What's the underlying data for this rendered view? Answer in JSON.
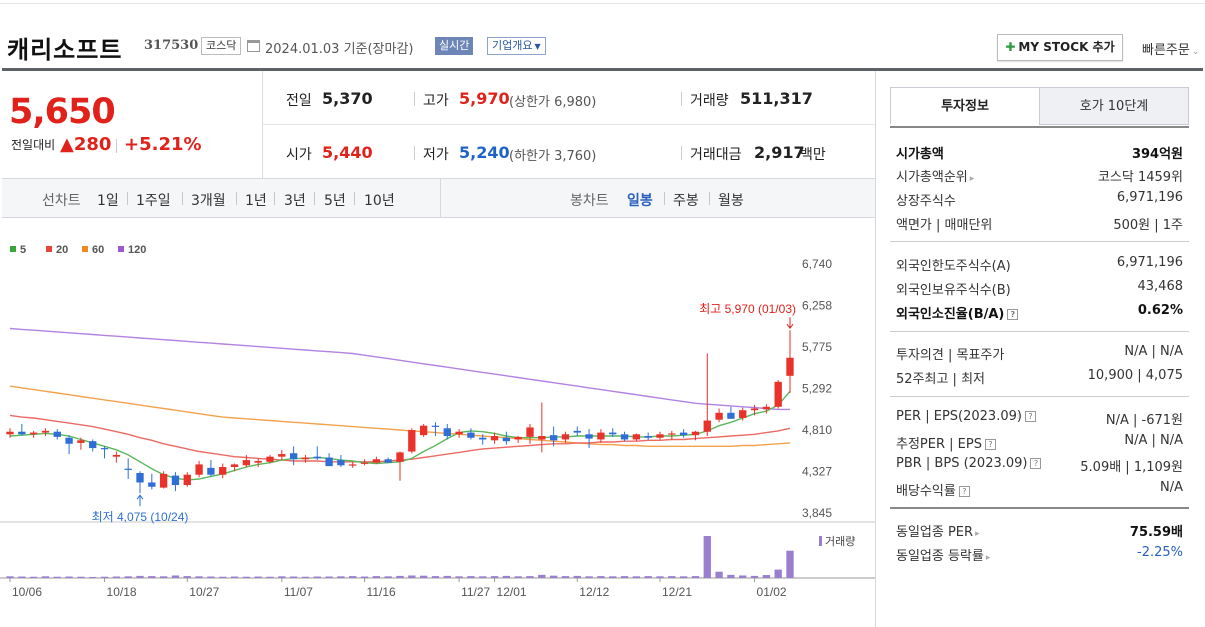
{
  "header": {
    "company_name": "캐리소프트",
    "code": "317530",
    "market_badge": "코스닥",
    "date_text": "2024.01.03 기준(장마감)",
    "realtime_label": "실시간",
    "company_info_label": "기업개요",
    "mystock_button": "MY STOCK 추가",
    "quick_order": "빠른주문"
  },
  "summary": {
    "price": "5,650",
    "change_label": "전일대비",
    "change_arrow": "▲",
    "change_value": "280",
    "change_pct": "+5.21%",
    "prev_close_label": "전일",
    "prev_close": "5,370",
    "high_label": "고가",
    "high": "5,970",
    "upper_limit": "(상한가 6,980)",
    "volume_label": "거래량",
    "volume": "511,317",
    "open_label": "시가",
    "open": "5,440",
    "low_label": "저가",
    "low": "5,240",
    "lower_limit": "(하한가 3,760)",
    "amount_label": "거래대금",
    "amount": "2,917",
    "amount_unit": "백만"
  },
  "period_tabs": {
    "line_chart_label": "선차트",
    "line_items": [
      "1일",
      "1주일",
      "3개월",
      "1년",
      "3년",
      "5년",
      "10년"
    ],
    "candle_chart_label": "봉차트",
    "candle_items": [
      "일봉",
      "주봉",
      "월봉"
    ],
    "active_candle": "일봉"
  },
  "right_panel": {
    "tab_active": "투자정보",
    "tab_other": "호가 10단계",
    "market_cap_label": "시가총액",
    "market_cap": "394억원",
    "cap_rank_label": "시가총액순위",
    "cap_rank": "코스닥 1459위",
    "shares_label": "상장주식수",
    "shares": "6,971,196",
    "par_label": "액면가 | 매매단위",
    "par_value": "500원 | 1주",
    "foreign_limit_label": "외국인한도주식수(A)",
    "foreign_limit": "6,971,196",
    "foreign_held_label": "외국인보유주식수(B)",
    "foreign_held": "43,468",
    "foreign_ratio_label": "외국인소진율(B/A)",
    "foreign_ratio": "0.62%",
    "opinion_label": "투자의견 | 목표주가",
    "opinion_value": "N/A | N/A",
    "week52_label": "52주최고 | 최저",
    "week52_value": "10,900 | 4,075",
    "per_label": "PER | EPS(2023.09)",
    "per_value": "N/A | -671원",
    "est_per_label": "추정PER | EPS",
    "est_per_value": "N/A | N/A",
    "pbr_label": "PBR | BPS (2023.09)",
    "pbr_value": "5.09배 | 1,109원",
    "dividend_label": "배당수익률",
    "dividend_value": "N/A",
    "industry_per_label": "동일업종 PER",
    "industry_per": "75.59배",
    "industry_change_label": "동일업종 등락률",
    "industry_change": "-2.25%"
  },
  "chart_data": {
    "type": "candlestick",
    "ma_legend": [
      {
        "name": "5",
        "color": "#3aa63a"
      },
      {
        "name": "20",
        "color": "#e8443a"
      },
      {
        "name": "60",
        "color": "#f08a1c"
      },
      {
        "name": "120",
        "color": "#9c59d1"
      }
    ],
    "yticks": [
      "6,740",
      "6,258",
      "5,775",
      "5,292",
      "4,810",
      "4,327",
      "3,845"
    ],
    "xticks": [
      "10/06",
      "10/18",
      "10/27",
      "11/07",
      "11/16",
      "11/27",
      "12/01",
      "12/12",
      "12/21",
      "01/02"
    ],
    "ylim": [
      3845,
      6740
    ],
    "high_annotation": "최고 5,970 (01/03)",
    "low_annotation": "최저 4,075 (10/24)",
    "volume_label": "거래량",
    "candles": [
      {
        "o": 4760,
        "h": 4830,
        "l": 4720,
        "c": 4790
      },
      {
        "o": 4790,
        "h": 4880,
        "l": 4750,
        "c": 4760
      },
      {
        "o": 4760,
        "h": 4800,
        "l": 4720,
        "c": 4780
      },
      {
        "o": 4780,
        "h": 4830,
        "l": 4740,
        "c": 4800
      },
      {
        "o": 4790,
        "h": 4820,
        "l": 4700,
        "c": 4730
      },
      {
        "o": 4720,
        "h": 4750,
        "l": 4530,
        "c": 4650
      },
      {
        "o": 4660,
        "h": 4720,
        "l": 4580,
        "c": 4690
      },
      {
        "o": 4680,
        "h": 4700,
        "l": 4560,
        "c": 4600
      },
      {
        "o": 4600,
        "h": 4620,
        "l": 4480,
        "c": 4590
      },
      {
        "o": 4500,
        "h": 4560,
        "l": 4430,
        "c": 4520
      },
      {
        "o": 4360,
        "h": 4480,
        "l": 4240,
        "c": 4350
      },
      {
        "o": 4310,
        "h": 4330,
        "l": 4075,
        "c": 4200
      },
      {
        "o": 4200,
        "h": 4300,
        "l": 4120,
        "c": 4150
      },
      {
        "o": 4140,
        "h": 4330,
        "l": 4130,
        "c": 4300
      },
      {
        "o": 4280,
        "h": 4320,
        "l": 4100,
        "c": 4170
      },
      {
        "o": 4170,
        "h": 4320,
        "l": 4150,
        "c": 4290
      },
      {
        "o": 4290,
        "h": 4450,
        "l": 4260,
        "c": 4410
      },
      {
        "o": 4370,
        "h": 4460,
        "l": 4270,
        "c": 4290
      },
      {
        "o": 4290,
        "h": 4420,
        "l": 4250,
        "c": 4380
      },
      {
        "o": 4380,
        "h": 4420,
        "l": 4330,
        "c": 4410
      },
      {
        "o": 4400,
        "h": 4520,
        "l": 4380,
        "c": 4460
      },
      {
        "o": 4430,
        "h": 4480,
        "l": 4380,
        "c": 4450
      },
      {
        "o": 4440,
        "h": 4520,
        "l": 4420,
        "c": 4500
      },
      {
        "o": 4500,
        "h": 4580,
        "l": 4460,
        "c": 4530
      },
      {
        "o": 4540,
        "h": 4620,
        "l": 4400,
        "c": 4470
      },
      {
        "o": 4470,
        "h": 4520,
        "l": 4430,
        "c": 4490
      },
      {
        "o": 4500,
        "h": 4620,
        "l": 4460,
        "c": 4480
      },
      {
        "o": 4490,
        "h": 4540,
        "l": 4400,
        "c": 4390
      },
      {
        "o": 4460,
        "h": 4520,
        "l": 4380,
        "c": 4400
      },
      {
        "o": 4400,
        "h": 4440,
        "l": 4370,
        "c": 4410
      },
      {
        "o": 4420,
        "h": 4470,
        "l": 4400,
        "c": 4430
      },
      {
        "o": 4430,
        "h": 4500,
        "l": 4420,
        "c": 4470
      },
      {
        "o": 4470,
        "h": 4490,
        "l": 4430,
        "c": 4430
      },
      {
        "o": 4440,
        "h": 4560,
        "l": 4220,
        "c": 4550
      },
      {
        "o": 4560,
        "h": 4830,
        "l": 4540,
        "c": 4810
      },
      {
        "o": 4750,
        "h": 4880,
        "l": 4730,
        "c": 4860
      },
      {
        "o": 4860,
        "h": 4900,
        "l": 4740,
        "c": 4850
      },
      {
        "o": 4830,
        "h": 4880,
        "l": 4700,
        "c": 4740
      },
      {
        "o": 4760,
        "h": 4820,
        "l": 4720,
        "c": 4790
      },
      {
        "o": 4780,
        "h": 4830,
        "l": 4700,
        "c": 4720
      },
      {
        "o": 4720,
        "h": 4760,
        "l": 4640,
        "c": 4700
      },
      {
        "o": 4690,
        "h": 4780,
        "l": 4650,
        "c": 4740
      },
      {
        "o": 4720,
        "h": 4790,
        "l": 4640,
        "c": 4680
      },
      {
        "o": 4700,
        "h": 4740,
        "l": 4660,
        "c": 4730
      },
      {
        "o": 4730,
        "h": 4880,
        "l": 4650,
        "c": 4840
      },
      {
        "o": 4700,
        "h": 5130,
        "l": 4550,
        "c": 4740
      },
      {
        "o": 4750,
        "h": 4850,
        "l": 4620,
        "c": 4690
      },
      {
        "o": 4700,
        "h": 4790,
        "l": 4660,
        "c": 4760
      },
      {
        "o": 4800,
        "h": 4850,
        "l": 4740,
        "c": 4780
      },
      {
        "o": 4760,
        "h": 4820,
        "l": 4600,
        "c": 4710
      },
      {
        "o": 4700,
        "h": 4820,
        "l": 4660,
        "c": 4780
      },
      {
        "o": 4780,
        "h": 4830,
        "l": 4730,
        "c": 4760
      },
      {
        "o": 4760,
        "h": 4790,
        "l": 4680,
        "c": 4700
      },
      {
        "o": 4700,
        "h": 4770,
        "l": 4680,
        "c": 4760
      },
      {
        "o": 4740,
        "h": 4780,
        "l": 4690,
        "c": 4720
      },
      {
        "o": 4720,
        "h": 4790,
        "l": 4700,
        "c": 4760
      },
      {
        "o": 4760,
        "h": 4800,
        "l": 4700,
        "c": 4770
      },
      {
        "o": 4780,
        "h": 4820,
        "l": 4720,
        "c": 4750
      },
      {
        "o": 4750,
        "h": 4800,
        "l": 4690,
        "c": 4790
      },
      {
        "o": 4790,
        "h": 5700,
        "l": 4740,
        "c": 4920
      },
      {
        "o": 4930,
        "h": 5060,
        "l": 4900,
        "c": 5010
      },
      {
        "o": 5010,
        "h": 5080,
        "l": 4940,
        "c": 4940
      },
      {
        "o": 4950,
        "h": 5070,
        "l": 4920,
        "c": 5040
      },
      {
        "o": 5040,
        "h": 5100,
        "l": 4980,
        "c": 5060
      },
      {
        "o": 5050,
        "h": 5110,
        "l": 5000,
        "c": 5080
      },
      {
        "o": 5080,
        "h": 5390,
        "l": 5060,
        "c": 5370
      },
      {
        "o": 5440,
        "h": 5970,
        "l": 5240,
        "c": 5650
      }
    ],
    "ma5": [
      4740,
      4750,
      4760,
      4770,
      4760,
      4740,
      4700,
      4660,
      4620,
      4580,
      4520,
      4440,
      4360,
      4290,
      4250,
      4230,
      4240,
      4270,
      4300,
      4340,
      4380,
      4410,
      4430,
      4460,
      4480,
      4480,
      4490,
      4480,
      4460,
      4450,
      4430,
      4420,
      4430,
      4440,
      4480,
      4560,
      4630,
      4710,
      4780,
      4800,
      4790,
      4770,
      4740,
      4720,
      4720,
      4720,
      4730,
      4730,
      4740,
      4740,
      4740,
      4740,
      4740,
      4730,
      4730,
      4740,
      4740,
      4750,
      4760,
      4800,
      4860,
      4900,
      4950,
      5000,
      5030,
      5100,
      5260
    ],
    "ma20": [
      4980,
      4960,
      4950,
      4930,
      4910,
      4890,
      4870,
      4850,
      4820,
      4790,
      4760,
      4720,
      4690,
      4650,
      4620,
      4590,
      4560,
      4540,
      4520,
      4500,
      4490,
      4480,
      4470,
      4460,
      4450,
      4450,
      4450,
      4440,
      4440,
      4440,
      4440,
      4440,
      4450,
      4460,
      4470,
      4490,
      4510,
      4530,
      4550,
      4570,
      4590,
      4600,
      4610,
      4620,
      4630,
      4640,
      4650,
      4650,
      4660,
      4660,
      4670,
      4670,
      4680,
      4680,
      4690,
      4690,
      4700,
      4700,
      4710,
      4720,
      4730,
      4740,
      4750,
      4760,
      4780,
      4800,
      4830
    ],
    "ma60": [
      5320,
      5300,
      5280,
      5260,
      5240,
      5220,
      5200,
      5180,
      5160,
      5140,
      5120,
      5100,
      5080,
      5060,
      5040,
      5020,
      5000,
      4980,
      4960,
      4950,
      4940,
      4930,
      4920,
      4910,
      4900,
      4890,
      4880,
      4870,
      4860,
      4850,
      4840,
      4830,
      4820,
      4810,
      4800,
      4790,
      4780,
      4770,
      4760,
      4750,
      4740,
      4730,
      4720,
      4710,
      4700,
      4690,
      4680,
      4670,
      4660,
      4650,
      4640,
      4640,
      4630,
      4630,
      4620,
      4620,
      4620,
      4620,
      4620,
      4620,
      4620,
      4620,
      4630,
      4630,
      4640,
      4650,
      4660
    ],
    "ma120": [
      5990,
      5980,
      5970,
      5960,
      5950,
      5940,
      5930,
      5920,
      5910,
      5900,
      5890,
      5880,
      5870,
      5860,
      5850,
      5840,
      5830,
      5820,
      5810,
      5800,
      5790,
      5780,
      5770,
      5760,
      5750,
      5740,
      5730,
      5720,
      5710,
      5700,
      5680,
      5660,
      5640,
      5620,
      5600,
      5580,
      5560,
      5540,
      5520,
      5500,
      5480,
      5460,
      5440,
      5420,
      5400,
      5380,
      5360,
      5340,
      5320,
      5300,
      5280,
      5260,
      5240,
      5220,
      5200,
      5180,
      5160,
      5140,
      5120,
      5110,
      5100,
      5090,
      5080,
      5070,
      5060,
      5050,
      5050
    ],
    "volume": [
      8,
      7,
      6,
      8,
      6,
      7,
      6,
      5,
      6,
      7,
      8,
      10,
      9,
      8,
      12,
      9,
      8,
      7,
      6,
      7,
      6,
      7,
      6,
      8,
      7,
      6,
      7,
      7,
      8,
      9,
      7,
      9,
      8,
      10,
      12,
      11,
      9,
      10,
      8,
      9,
      8,
      9,
      10,
      8,
      9,
      15,
      11,
      9,
      10,
      8,
      9,
      8,
      9,
      8,
      9,
      8,
      9,
      8,
      9,
      200,
      30,
      15,
      12,
      10,
      14,
      40,
      130
    ]
  }
}
